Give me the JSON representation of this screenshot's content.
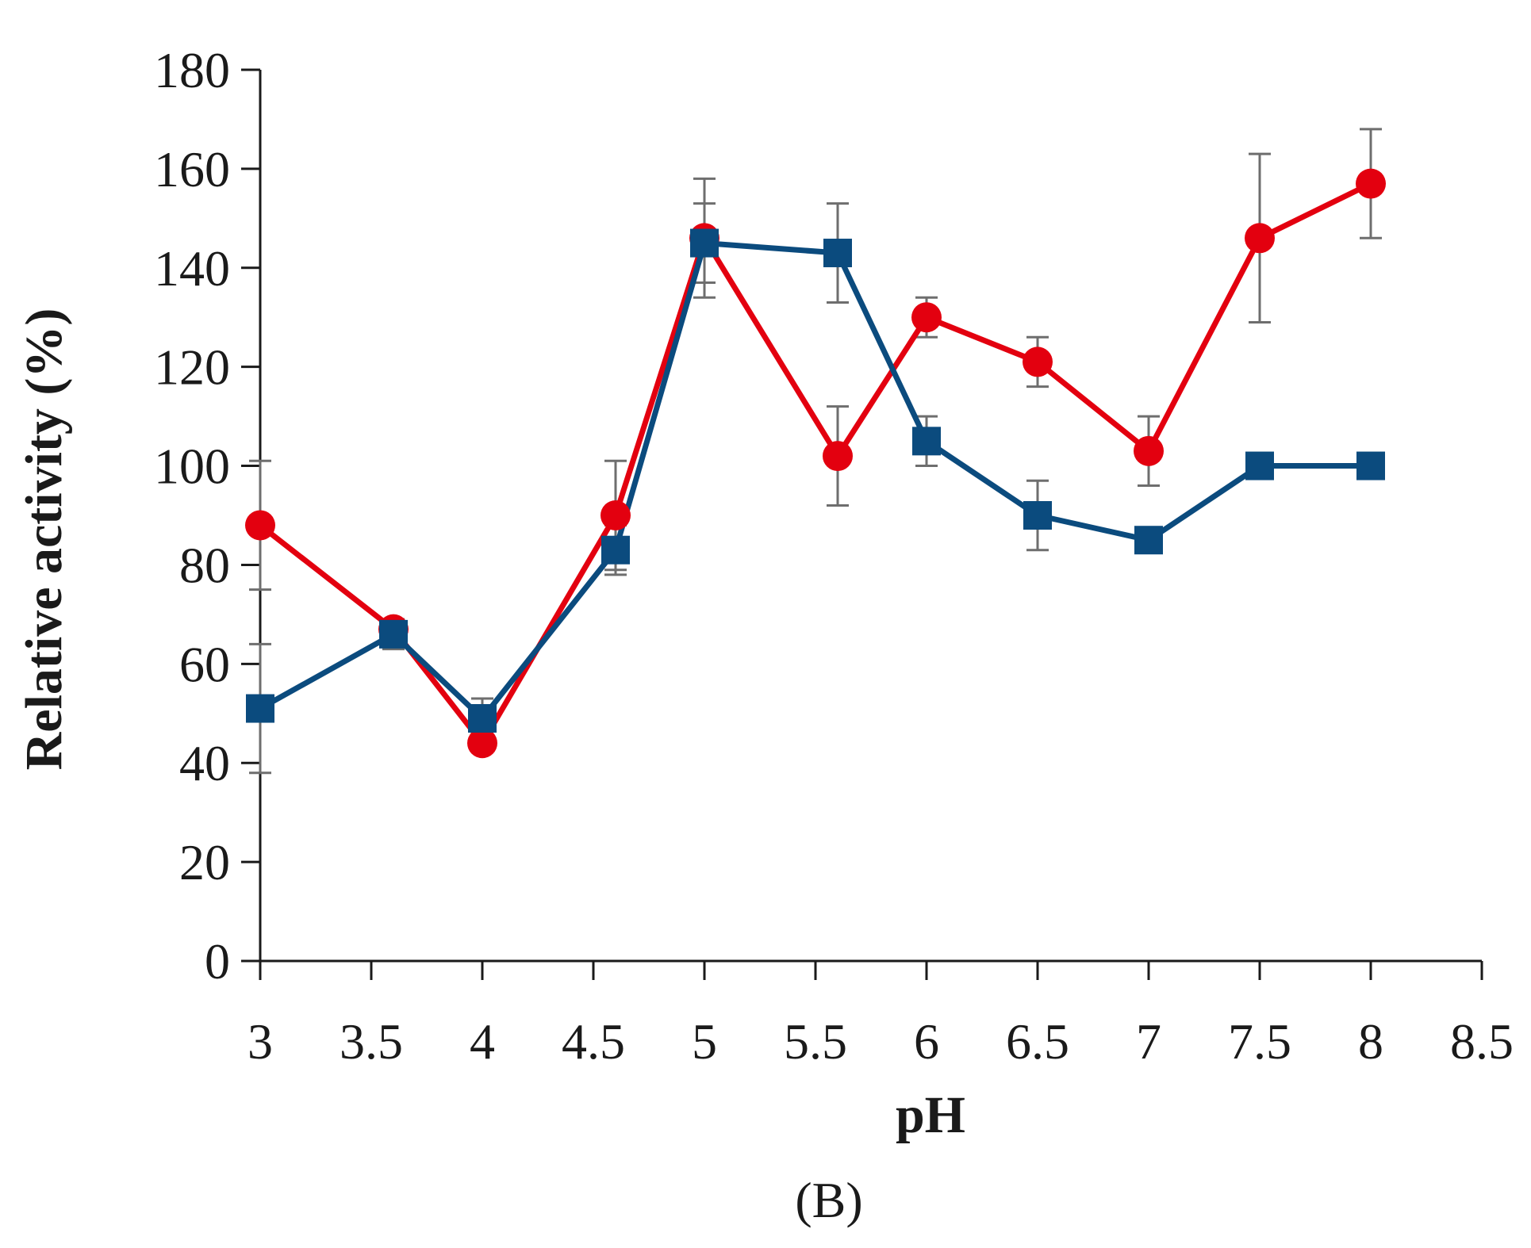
{
  "chart_data": {
    "type": "line",
    "title": "",
    "panel_label": "(B)",
    "xlabel": "pH",
    "ylabel": "Relative activity (%)",
    "xlim": [
      3,
      8.5
    ],
    "ylim": [
      0,
      180
    ],
    "x_ticks": [
      "3",
      "3.5",
      "4",
      "4.5",
      "5",
      "5.5",
      "6",
      "6.5",
      "7",
      "7.5",
      "8",
      "8.5"
    ],
    "y_ticks": [
      "0",
      "20",
      "40",
      "60",
      "80",
      "100",
      "120",
      "140",
      "160",
      "180"
    ],
    "grid": false,
    "legend": "none",
    "series": [
      {
        "name": "red-circles",
        "color": "#e3000f",
        "marker": "circle",
        "x": [
          3,
          3.6,
          4,
          4.6,
          5,
          5.6,
          6,
          6.5,
          7,
          7.5,
          8
        ],
        "values": [
          88,
          67,
          44,
          90,
          146,
          102,
          130,
          121,
          103,
          146,
          157
        ],
        "error": [
          13,
          2,
          1,
          11,
          12,
          10,
          4,
          5,
          7,
          17,
          11
        ]
      },
      {
        "name": "blue-squares",
        "color": "#0b4b7e",
        "marker": "square",
        "x": [
          3,
          3.6,
          4,
          4.6,
          5,
          5.6,
          6,
          6.5,
          7,
          7.5,
          8
        ],
        "values": [
          51,
          66,
          49,
          83,
          145,
          143,
          105,
          90,
          85,
          100,
          100
        ],
        "error": [
          13,
          3,
          4,
          5,
          8,
          10,
          5,
          7,
          2,
          1,
          1
        ]
      }
    ]
  }
}
